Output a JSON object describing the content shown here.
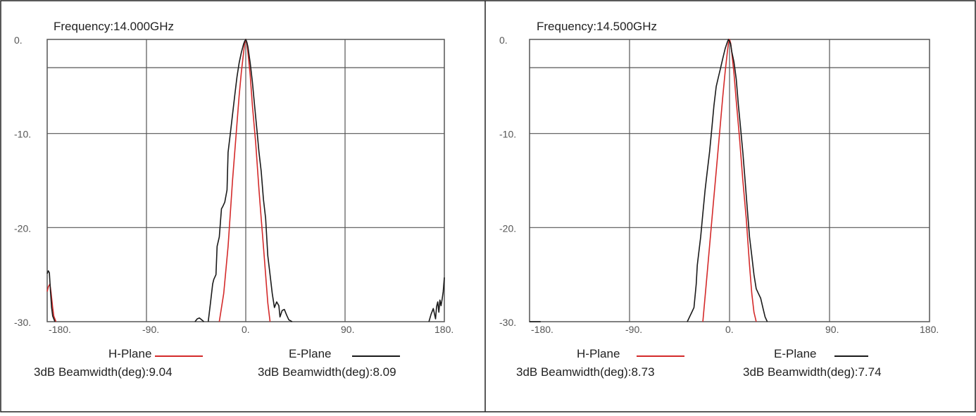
{
  "colors": {
    "h_plane": "#d42a2a",
    "e_plane": "#1a1a1a",
    "grid": "#555555",
    "border": "#222222",
    "background": "#ffffff"
  },
  "chart_data": [
    {
      "type": "line",
      "title": "Frequency:14.000GHz",
      "xlim": [
        -180,
        180
      ],
      "ylim": [
        -30,
        0
      ],
      "xticks": [
        -180,
        -90,
        0,
        90,
        180
      ],
      "xtick_labels": [
        "-180.",
        "-90.",
        "0.",
        "90.",
        "180."
      ],
      "yticks": [
        0,
        -10,
        -20,
        -30
      ],
      "ytick_labels": [
        "0.",
        "-10.",
        "-20.",
        "-30."
      ],
      "reference_line_db": -3,
      "grid": true,
      "legend_position": "bottom",
      "series": [
        {
          "name": "H-Plane",
          "color": "#d42a2a",
          "beamwidth_label": "3dB Beamwidth(deg):9.04",
          "segments": [
            {
              "x": [
                -180,
                -179,
                -177.5,
                -176.5,
                -175,
                -174,
                -172
              ],
              "y": [
                -26.8,
                -26.3,
                -26.0,
                -26.9,
                -28.5,
                -29.4,
                -30
              ]
            },
            {
              "x": [
                -24,
                -20,
                -16,
                -12,
                -9,
                -6,
                -4,
                -2,
                -1,
                0,
                1,
                2,
                4,
                6,
                9,
                12,
                14,
                16,
                18,
                20,
                22
              ],
              "y": [
                -30,
                -27,
                -22,
                -15,
                -10.5,
                -6,
                -3.5,
                -1.4,
                -0.4,
                0,
                -0.4,
                -1.4,
                -3.8,
                -7,
                -11,
                -16,
                -19,
                -22,
                -25,
                -28,
                -30
              ]
            }
          ]
        },
        {
          "name": "E-Plane",
          "color": "#1a1a1a",
          "beamwidth_label": "3dB Beamwidth(deg):8.09",
          "segments": [
            {
              "x": [
                -180,
                -179,
                -178,
                -177,
                -176,
                -175,
                -173
              ],
              "y": [
                -24.9,
                -24.6,
                -24.8,
                -26.8,
                -28.5,
                -29.4,
                -30
              ]
            },
            {
              "x": [
                -46,
                -44,
                -42,
                -40,
                -38
              ],
              "y": [
                -30,
                -29.7,
                -29.6,
                -29.8,
                -30
              ]
            },
            {
              "x": [
                -34,
                -32,
                -30,
                -29,
                -27,
                -26,
                -24,
                -22,
                -21,
                -19,
                -17,
                -16,
                -14,
                -12,
                -10,
                -8,
                -6,
                -4,
                -2,
                -1,
                0,
                1,
                2,
                4,
                6,
                8,
                10,
                12,
                14,
                16,
                18,
                20,
                22,
                24,
                26,
                28,
                30,
                31,
                33,
                35,
                37,
                39,
                42
              ],
              "y": [
                -30,
                -28,
                -26,
                -25.5,
                -25,
                -22,
                -21,
                -18,
                -17.8,
                -17.3,
                -16,
                -12,
                -10,
                -8,
                -6,
                -4,
                -2.5,
                -1.4,
                -0.5,
                -0.2,
                0,
                -0.3,
                -0.8,
                -2.5,
                -4.5,
                -7,
                -9.5,
                -12,
                -14,
                -17,
                -19,
                -23,
                -25,
                -27,
                -28.5,
                -27.9,
                -28.3,
                -29.5,
                -28.8,
                -28.7,
                -29.3,
                -29.8,
                -30
              ]
            },
            {
              "x": [
                166,
                168,
                170,
                172,
                173,
                174,
                175,
                176,
                177,
                178,
                179,
                180
              ],
              "y": [
                -30,
                -29.2,
                -28.6,
                -29.7,
                -28.4,
                -27.9,
                -29,
                -27.7,
                -28.3,
                -27.6,
                -26.8,
                -25.3
              ]
            }
          ]
        }
      ]
    },
    {
      "type": "line",
      "title": "Frequency:14.500GHz",
      "xlim": [
        -180,
        180
      ],
      "ylim": [
        -30,
        0
      ],
      "xticks": [
        -180,
        -90,
        0,
        90,
        180
      ],
      "xtick_labels": [
        "-180.",
        "-90.",
        "0.",
        "90.",
        "180."
      ],
      "yticks": [
        0,
        -10,
        -20,
        -30
      ],
      "ytick_labels": [
        "0.",
        "-10.",
        "-20.",
        "-30."
      ],
      "reference_line_db": -3,
      "grid": true,
      "legend_position": "bottom",
      "series": [
        {
          "name": "H-Plane",
          "color": "#d42a2a",
          "beamwidth_label": "3dB Beamwidth(deg):8.73",
          "segments": [
            {
              "x": [
                -24,
                -21,
                -18,
                -15,
                -12,
                -9,
                -6,
                -4,
                -2,
                -1,
                0,
                1,
                2,
                4,
                6,
                9,
                12,
                15,
                18,
                20,
                22,
                24
              ],
              "y": [
                -30,
                -26,
                -22,
                -18,
                -14,
                -10,
                -6,
                -3.5,
                -1.4,
                -0.4,
                0,
                -0.4,
                -1.4,
                -3.6,
                -6.5,
                -10.5,
                -15,
                -19,
                -24,
                -27,
                -29,
                -30
              ]
            }
          ]
        },
        {
          "name": "E-Plane",
          "color": "#1a1a1a",
          "beamwidth_label": "3dB Beamwidth(deg):7.74",
          "segments": [
            {
              "x": [
                -180,
                -170
              ],
              "y": [
                -30,
                -30
              ]
            },
            {
              "x": [
                -38,
                -36,
                -34,
                -32,
                -30,
                -29,
                -28,
                -26,
                -24,
                -22,
                -20,
                -18,
                -16,
                -14,
                -12,
                -10,
                -8,
                -6,
                -4,
                -2,
                -1,
                0,
                1,
                2,
                4,
                6,
                8,
                10,
                12,
                14,
                16,
                18,
                20,
                22,
                24,
                26,
                28,
                30,
                32,
                34
              ],
              "y": [
                -30,
                -29.5,
                -29,
                -28.5,
                -26,
                -24,
                -23,
                -21,
                -18.5,
                -16,
                -14,
                -12,
                -9.5,
                -7,
                -5,
                -4,
                -3,
                -2,
                -1,
                -0.3,
                0,
                -0.2,
                -0.5,
                -1.3,
                -2.4,
                -4.2,
                -7,
                -9.5,
                -12,
                -15,
                -18,
                -21,
                -23,
                -25,
                -26.5,
                -27,
                -27.5,
                -28.5,
                -29.5,
                -30
              ]
            }
          ]
        }
      ]
    }
  ]
}
